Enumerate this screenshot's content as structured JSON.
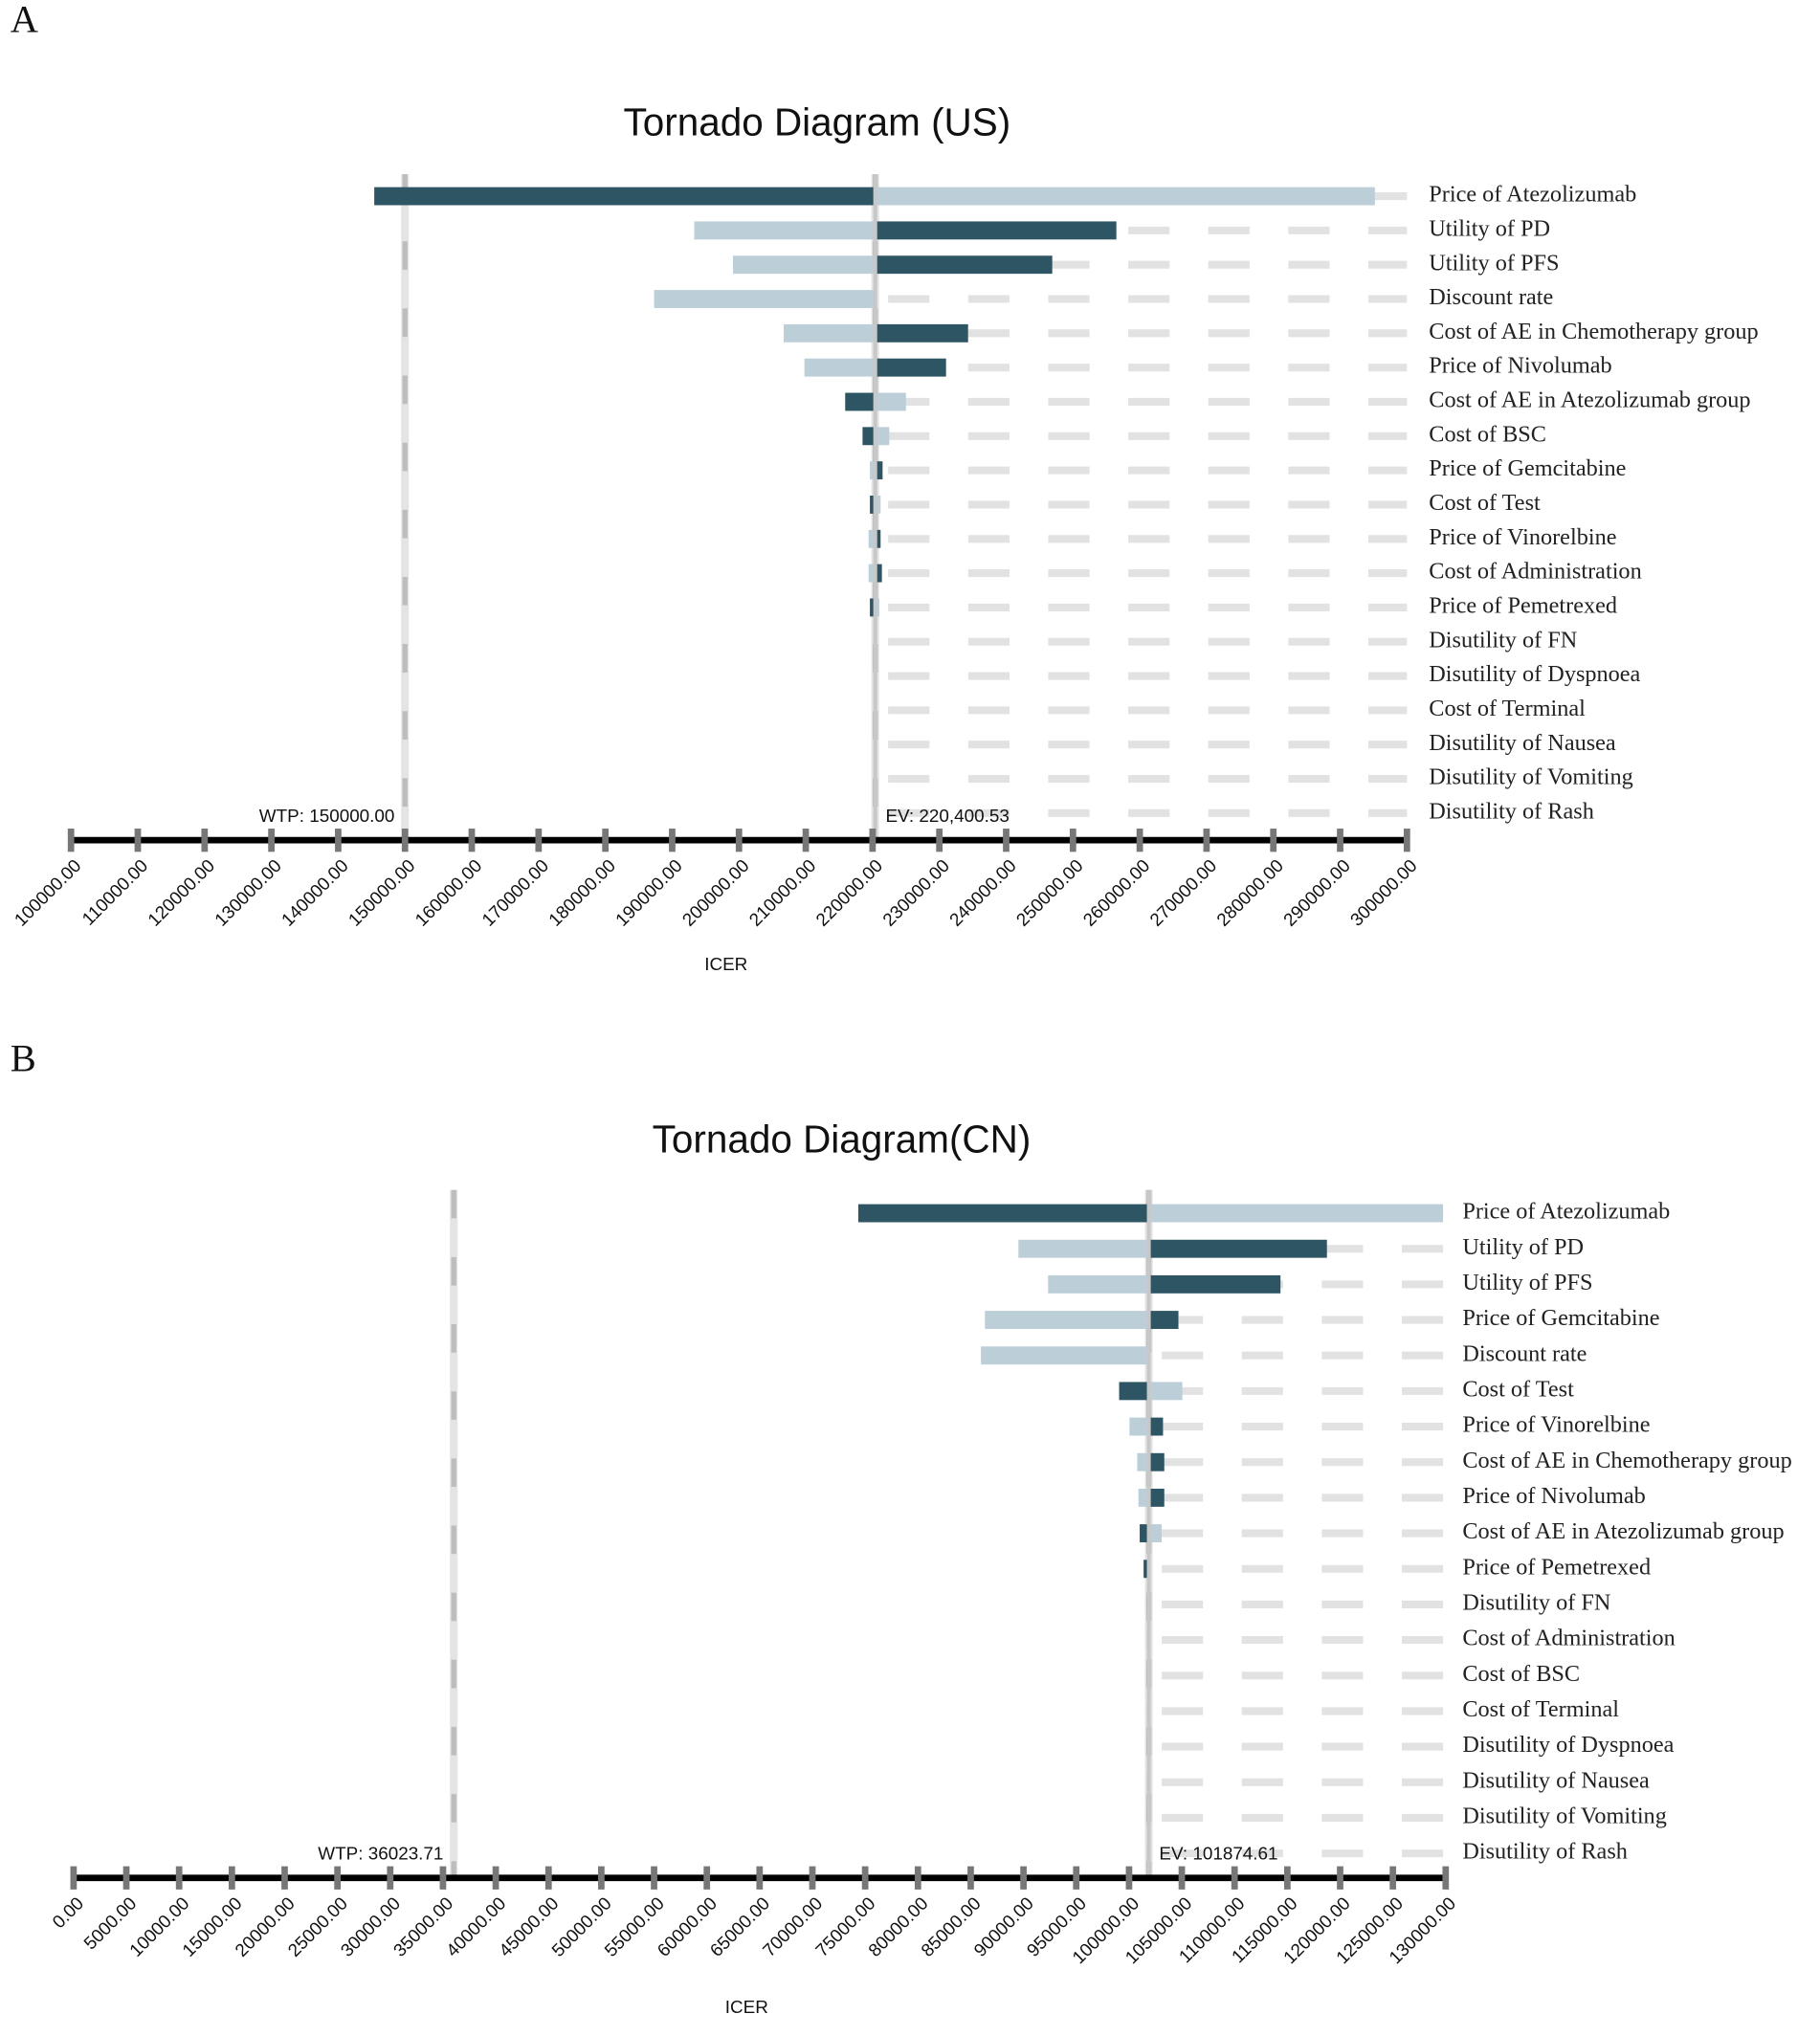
{
  "chart_data": [
    {
      "type": "tornado",
      "panel": "A",
      "title": "Tornado Diagram (US)",
      "xlabel": "ICER",
      "categories": [
        "Price of Atezolizumab",
        "Utility of PD",
        "Utility of PFS",
        "Discount rate",
        "Cost of AE in Chemotherapy group",
        "Price of Nivolumab",
        "Cost of AE in Atezolizumab group",
        "Cost of BSC",
        "Price of Gemcitabine",
        "Cost of Test",
        "Price of Vinorelbine",
        "Cost of Administration",
        "Price of Pemetrexed",
        "Disutility of FN",
        "Disutility of Dyspnoea",
        "Cost of Terminal",
        "Disutility of Nausea",
        "Disutility of Vomiting",
        "Disutility of Rash"
      ],
      "series": [
        {
          "color": "#2e5563",
          "values": [
            145400,
            256500,
            246900,
            220400.53,
            234300,
            231000,
            215900,
            218500,
            221500,
            219600,
            221200,
            221400,
            219600,
            220200,
            220200,
            220200,
            220200,
            220200,
            220200
          ]
        },
        {
          "color": "#bccfd9",
          "values": [
            295200,
            193300,
            199100,
            187300,
            206700,
            209800,
            225000,
            222500,
            219600,
            221200,
            219400,
            219400,
            221000,
            220600,
            220600,
            220600,
            220600,
            220600,
            220600
          ]
        }
      ],
      "ev": {
        "value": 220400.53,
        "label": "EV: 220,400.53"
      },
      "wtp": {
        "value": 150000,
        "label": "WTP: 150000.00"
      },
      "xlim": [
        100000,
        300000
      ],
      "xticks": [
        {
          "value": 100000,
          "label": "100000.00"
        },
        {
          "value": 110000,
          "label": "110000.00"
        },
        {
          "value": 120000,
          "label": "120000.00"
        },
        {
          "value": 130000,
          "label": "130000.00"
        },
        {
          "value": 140000,
          "label": "140000.00"
        },
        {
          "value": 150000,
          "label": "150000.00"
        },
        {
          "value": 160000,
          "label": "160000.00"
        },
        {
          "value": 170000,
          "label": "170000.00"
        },
        {
          "value": 180000,
          "label": "180000.00"
        },
        {
          "value": 190000,
          "label": "190000.00"
        },
        {
          "value": 200000,
          "label": "200000.00"
        },
        {
          "value": 210000,
          "label": "210000.00"
        },
        {
          "value": 220000,
          "label": "220000.00"
        },
        {
          "value": 230000,
          "label": "230000.00"
        },
        {
          "value": 240000,
          "label": "240000.00"
        },
        {
          "value": 250000,
          "label": "250000.00"
        },
        {
          "value": 260000,
          "label": "260000.00"
        },
        {
          "value": 270000,
          "label": "270000.00"
        },
        {
          "value": 280000,
          "label": "280000.00"
        },
        {
          "value": 290000,
          "label": "290000.00"
        },
        {
          "value": 300000,
          "label": "300000.00"
        }
      ]
    },
    {
      "type": "tornado",
      "panel": "B",
      "title": "Tornado Diagram(CN)",
      "xlabel": "ICER",
      "categories": [
        "Price of Atezolizumab",
        "Utility of PD",
        "Utility of PFS",
        "Price of Gemcitabine",
        "Discount rate",
        "Cost of Test",
        "Price of Vinorelbine",
        "Cost of AE in Chemotherapy group",
        "Price of Nivolumab",
        "Cost of AE in Atezolizumab group",
        "Price of Pemetrexed",
        "Disutility of FN",
        "Cost of Administration",
        "Cost of BSC",
        "Cost of Terminal",
        "Disutility of Dyspnoea",
        "Disutility of Nausea",
        "Disutility of Vomiting",
        "Disutility of Rash"
      ],
      "series": [
        {
          "color": "#2e5563",
          "values": [
            74350,
            118750,
            114350,
            104680,
            101874.61,
            99060,
            103220,
            103340,
            103340,
            101010,
            101380,
            101700,
            101700,
            101700,
            101700,
            101700,
            101700,
            101700,
            101700
          ]
        },
        {
          "color": "#bccfd9",
          "values": [
            129750,
            89520,
            92330,
            86340,
            85970,
            105050,
            100040,
            100770,
            100890,
            103090,
            102000,
            102050,
            102050,
            102050,
            102050,
            102050,
            102050,
            102050,
            102050
          ]
        }
      ],
      "ev": {
        "value": 101874.61,
        "label": "EV: 101874.61"
      },
      "wtp": {
        "value": 36023.71,
        "label": "WTP: 36023.71"
      },
      "xlim": [
        0,
        130000
      ],
      "xticks": [
        {
          "value": 0,
          "label": "0.00"
        },
        {
          "value": 5000,
          "label": "5000.00"
        },
        {
          "value": 10000,
          "label": "10000.00"
        },
        {
          "value": 15000,
          "label": "15000.00"
        },
        {
          "value": 20000,
          "label": "20000.00"
        },
        {
          "value": 25000,
          "label": "25000.00"
        },
        {
          "value": 30000,
          "label": "30000.00"
        },
        {
          "value": 35000,
          "label": "35000.00"
        },
        {
          "value": 40000,
          "label": "40000.00"
        },
        {
          "value": 45000,
          "label": "45000.00"
        },
        {
          "value": 50000,
          "label": "50000.00"
        },
        {
          "value": 55000,
          "label": "55000.00"
        },
        {
          "value": 60000,
          "label": "60000.00"
        },
        {
          "value": 65000,
          "label": "65000.00"
        },
        {
          "value": 70000,
          "label": "70000.00"
        },
        {
          "value": 75000,
          "label": "75000.00"
        },
        {
          "value": 80000,
          "label": "80000.00"
        },
        {
          "value": 85000,
          "label": "85000.00"
        },
        {
          "value": 90000,
          "label": "90000.00"
        },
        {
          "value": 95000,
          "label": "95000.00"
        },
        {
          "value": 100000,
          "label": "100000.00"
        },
        {
          "value": 105000,
          "label": "105000.00"
        },
        {
          "value": 110000,
          "label": "110000.00"
        },
        {
          "value": 115000,
          "label": "115000.00"
        },
        {
          "value": 120000,
          "label": "120000.00"
        },
        {
          "value": 125000,
          "label": "125000.00"
        },
        {
          "value": 130000,
          "label": "130000.00"
        }
      ]
    }
  ]
}
